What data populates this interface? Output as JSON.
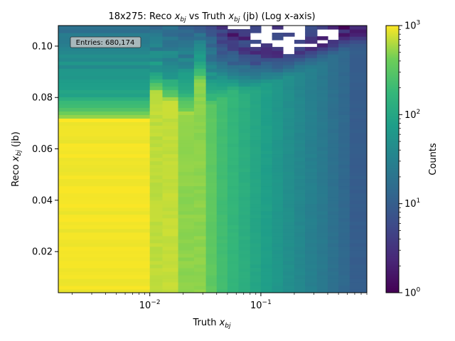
{
  "chart_data": {
    "type": "heatmap",
    "title": {
      "prefix": "18x275: Reco ",
      "var1": "x",
      "sub1": "bj",
      "middle": " vs Truth ",
      "var2": "x",
      "sub2": "bj",
      "suffix": " (jb) (Log x-axis)"
    },
    "xlabel": {
      "prefix": "Truth ",
      "var": "x",
      "sub": "bj"
    },
    "ylabel": {
      "prefix": "Reco ",
      "var": "x",
      "sub": "bj",
      "suffix": " (jb)"
    },
    "x_scale": "log",
    "xlim": [
      0.0015,
      0.9
    ],
    "ylim": [
      0.004,
      0.108
    ],
    "x_ticks": [
      {
        "value": 0.01,
        "base": "10",
        "exp": "−2"
      },
      {
        "value": 0.1,
        "base": "10",
        "exp": "−1"
      }
    ],
    "y_ticks": [
      {
        "value": 0.02,
        "label": "0.02"
      },
      {
        "value": 0.04,
        "label": "0.04"
      },
      {
        "value": 0.06,
        "label": "0.06"
      },
      {
        "value": 0.08,
        "label": "0.08"
      },
      {
        "value": 0.1,
        "label": "0.10"
      }
    ],
    "annotation": "Entries: 680,174",
    "colorbar": {
      "label": "Counts",
      "scale": "log",
      "range": [
        1,
        1000
      ],
      "colormap": "viridis",
      "ticks": [
        {
          "value": 1,
          "base": "10",
          "exp": "0"
        },
        {
          "value": 10,
          "base": "10",
          "exp": "1"
        },
        {
          "value": 100,
          "base": "10",
          "exp": "2"
        },
        {
          "value": 1000,
          "base": "10",
          "exp": "3"
        }
      ]
    },
    "bands": [
      {
        "x_range": [
          0.0015,
          0.01
        ],
        "plateau_top": 0.071,
        "taper_top": 0.078,
        "max_reco": 0.108,
        "level": 950
      },
      {
        "x_range": [
          0.01,
          0.013
        ],
        "plateau_top": 0.082,
        "taper_top": 0.088,
        "max_reco": 0.108,
        "level": 700
      },
      {
        "x_range": [
          0.013,
          0.018
        ],
        "plateau_top": 0.078,
        "taper_top": 0.086,
        "max_reco": 0.108,
        "level": 720
      },
      {
        "x_range": [
          0.018,
          0.025
        ],
        "plateau_top": 0.074,
        "taper_top": 0.086,
        "max_reco": 0.108,
        "level": 520
      },
      {
        "x_range": [
          0.025,
          0.032
        ],
        "plateau_top": 0.086,
        "taper_top": 0.094,
        "max_reco": 0.108,
        "level": 520
      },
      {
        "x_range": [
          0.032,
          0.04
        ],
        "plateau_top": 0.076,
        "taper_top": 0.088,
        "max_reco": 0.108,
        "level": 340
      },
      {
        "x_range": [
          0.04,
          0.05
        ],
        "plateau_top": 0.08,
        "taper_top": 0.09,
        "max_reco": 0.104,
        "level": 220
      },
      {
        "x_range": [
          0.05,
          0.063
        ],
        "plateau_top": 0.082,
        "taper_top": 0.09,
        "max_reco": 0.102,
        "level": 170
      },
      {
        "x_range": [
          0.063,
          0.08
        ],
        "plateau_top": 0.082,
        "taper_top": 0.09,
        "max_reco": 0.1,
        "level": 130
      },
      {
        "x_range": [
          0.08,
          0.1
        ],
        "plateau_top": 0.083,
        "taper_top": 0.091,
        "max_reco": 0.099,
        "level": 100
      },
      {
        "x_range": [
          0.1,
          0.126
        ],
        "plateau_top": 0.085,
        "taper_top": 0.092,
        "max_reco": 0.098,
        "level": 80
      },
      {
        "x_range": [
          0.126,
          0.158
        ],
        "plateau_top": 0.086,
        "taper_top": 0.093,
        "max_reco": 0.097,
        "level": 62
      },
      {
        "x_range": [
          0.158,
          0.2
        ],
        "plateau_top": 0.088,
        "taper_top": 0.095,
        "max_reco": 0.097,
        "level": 48
      },
      {
        "x_range": [
          0.2,
          0.25
        ],
        "plateau_top": 0.09,
        "taper_top": 0.096,
        "max_reco": 0.098,
        "level": 38
      },
      {
        "x_range": [
          0.25,
          0.32
        ],
        "plateau_top": 0.092,
        "taper_top": 0.098,
        "max_reco": 0.099,
        "level": 30
      },
      {
        "x_range": [
          0.32,
          0.4
        ],
        "plateau_top": 0.094,
        "taper_top": 0.1,
        "max_reco": 0.101,
        "level": 24
      },
      {
        "x_range": [
          0.4,
          0.5
        ],
        "plateau_top": 0.096,
        "taper_top": 0.102,
        "max_reco": 0.103,
        "level": 18
      },
      {
        "x_range": [
          0.5,
          0.63
        ],
        "plateau_top": 0.098,
        "taper_top": 0.104,
        "max_reco": 0.105,
        "level": 14
      },
      {
        "x_range": [
          0.63,
          0.9
        ],
        "plateau_top": 0.1,
        "taper_top": 0.106,
        "max_reco": 0.107,
        "level": 10
      }
    ]
  }
}
